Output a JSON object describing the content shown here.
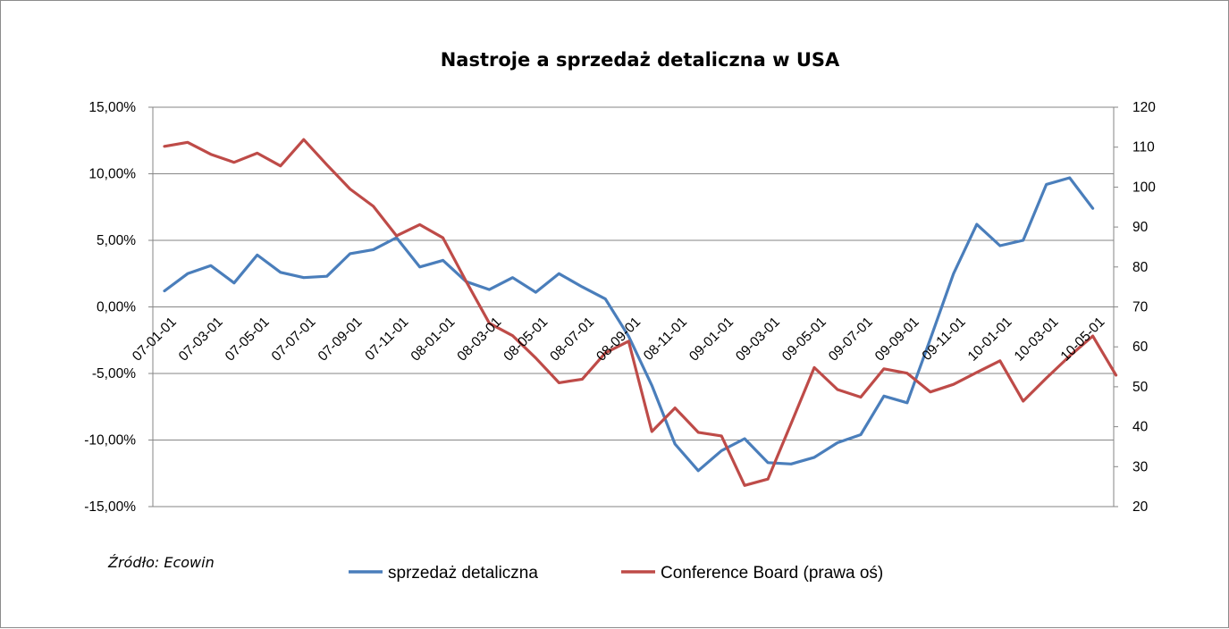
{
  "chart_data": {
    "type": "line",
    "title": "Nastroje a sprzedaż detaliczna w USA",
    "source": "Źródło: Ecowin",
    "x_tick_labels": [
      "07-01-01",
      "07-03-01",
      "07-05-01",
      "07-07-01",
      "07-09-01",
      "07-11-01",
      "08-01-01",
      "08-03-01",
      "08-05-01",
      "08-07-01",
      "08-09-01",
      "08-11-01",
      "09-01-01",
      "09-03-01",
      "09-05-01",
      "09-07-01",
      "09-09-01",
      "09-11-01",
      "10-01-01",
      "10-03-01",
      "10-05-01"
    ],
    "y_left": {
      "min": -15,
      "max": 15,
      "ticks": [
        15,
        10,
        5,
        0,
        -5,
        -10,
        -15
      ],
      "tick_labels": [
        "15,00%",
        "10,00%",
        "5,00%",
        "0,00%",
        "-5,00%",
        "-10,00%",
        "-15,00%"
      ]
    },
    "y_right": {
      "min": 20,
      "max": 120,
      "ticks": [
        120,
        110,
        100,
        90,
        80,
        70,
        60,
        50,
        40,
        30,
        20
      ],
      "tick_labels": [
        "120",
        "110",
        "100",
        "90",
        "80",
        "70",
        "60",
        "50",
        "40",
        "30",
        "20"
      ]
    },
    "grid": true,
    "legend_position": "bottom",
    "series": [
      {
        "name": "sprzedaż detaliczna",
        "axis": "left",
        "color": "#4a7ebb",
        "values": [
          1.2,
          2.5,
          3.1,
          1.8,
          3.9,
          2.6,
          2.2,
          2.3,
          4.0,
          4.3,
          5.2,
          3.0,
          3.5,
          1.9,
          1.3,
          2.2,
          1.1,
          2.5,
          1.5,
          0.6,
          -2.2,
          -5.9,
          -10.3,
          -12.3,
          -10.8,
          -9.9,
          -11.7,
          -11.8,
          -11.3,
          -10.2,
          -9.6,
          -6.7,
          -7.2,
          -2.4,
          2.5,
          6.2,
          4.6,
          5.0,
          9.2,
          9.7,
          7.4
        ]
      },
      {
        "name": "Conference Board (prawa oś)",
        "axis": "right",
        "color": "#be4b48",
        "values": [
          110.2,
          111.2,
          108.2,
          106.2,
          108.5,
          105.3,
          111.9,
          105.6,
          99.5,
          95.2,
          87.8,
          90.6,
          87.3,
          76.4,
          65.9,
          62.8,
          57.2,
          51.0,
          51.9,
          58.5,
          61.4,
          38.8,
          44.7,
          38.6,
          37.7,
          25.3,
          26.9,
          40.8,
          54.8,
          49.3,
          47.4,
          54.5,
          53.4,
          48.7,
          50.6,
          53.6,
          56.5,
          46.4,
          52.2,
          57.7,
          62.7,
          52.9
        ]
      }
    ]
  }
}
